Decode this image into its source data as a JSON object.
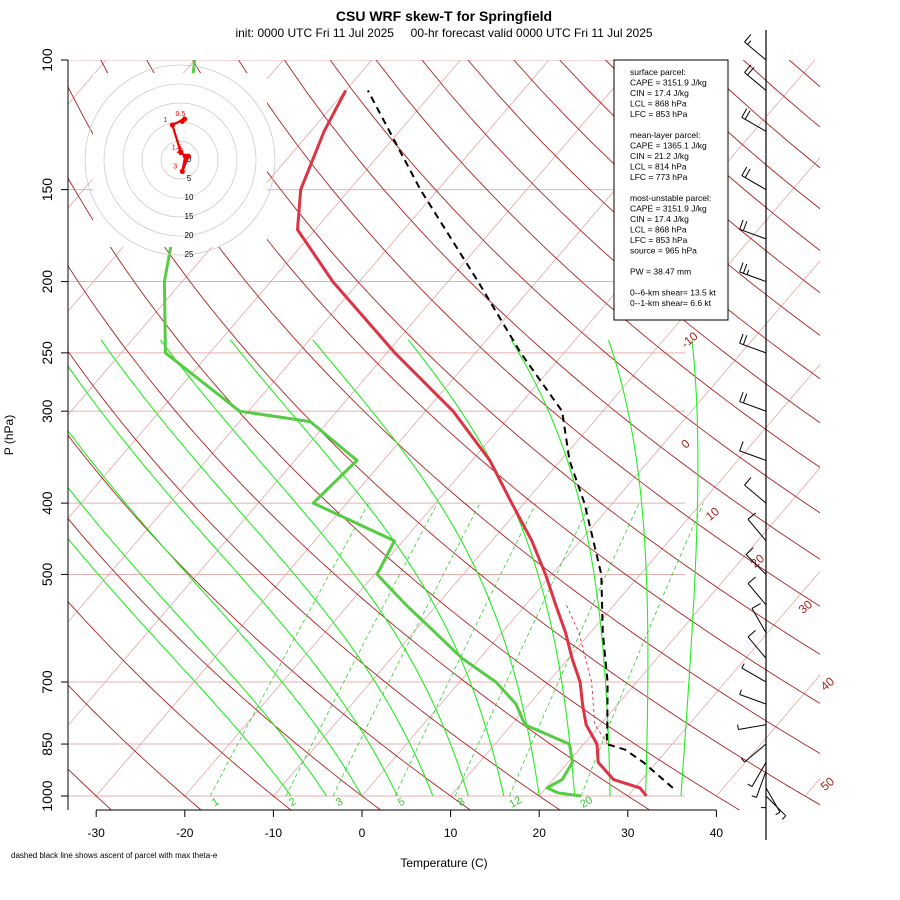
{
  "header": {
    "title": "CSU WRF skew-T for Springfield",
    "subtitle": "init: 0000 UTC Fri 11 Jul 2025     00-hr forecast valid 0000 UTC Fri 11 Jul 2025"
  },
  "footnote": "dashed black line shows ascent of parcel with max theta-e",
  "stats": {
    "lines": [
      "surface parcel:",
      "CAPE = 3151.9 J/kg",
      "CIN = 17.4 J/kg",
      "LCL = 868 hPa",
      "LFC = 853 hPa",
      "",
      "mean-layer parcel:",
      "CAPE = 1365.1 J/kg",
      "CIN = 21.2 J/kg",
      "LCL = 814 hPa",
      "LFC = 773 hPa",
      "",
      "most-unstable parcel:",
      "CAPE = 3151.9 J/kg",
      "CIN = 17.4 J/kg",
      "LCL = 868 hPa",
      "LFC = 853 hPa",
      "source = 965 hPa",
      "",
      "PW =  38.47 mm",
      "",
      "0--6-km shear= 13.5 kt",
      "0--1-km shear= 6.6 kt"
    ]
  },
  "colors": {
    "temperature": "#dd3344",
    "dewpoint": "#55cc44",
    "parcel": "#000000",
    "dry_adiabat": "#aa2222",
    "isobar": "#e8b0b0",
    "isotherm": "#e0a8a8",
    "moist_adiabat": "#22ee22",
    "mixing_ratio": "#33cc33",
    "hodograph": "#ee0000"
  },
  "chart_data": {
    "type": "skew-t",
    "title": "CSU WRF skew-T for Springfield",
    "xlabel": "Temperature (C)",
    "ylabel": "P (hPa)",
    "x_range": [
      -33,
      52
    ],
    "y_range": [
      1000,
      100
    ],
    "y_scale": "log",
    "x_ticks": [
      -30,
      -20,
      -10,
      0,
      10,
      20,
      30,
      40
    ],
    "y_ticks": [
      100,
      150,
      200,
      250,
      300,
      400,
      500,
      700,
      850,
      1000
    ],
    "isotherm_labels": [
      -10,
      0,
      10,
      20,
      30,
      40,
      50
    ],
    "mixing_ratio_labels": [
      1,
      2,
      3,
      5,
      8,
      12,
      20
    ],
    "temperature_profile": {
      "name": "temperature",
      "points": [
        [
          1000,
          32.1
        ],
        [
          975,
          30.6
        ],
        [
          950,
          26.8
        ],
        [
          900,
          23.4
        ],
        [
          850,
          21.5
        ],
        [
          800,
          18.4
        ],
        [
          750,
          16.0
        ],
        [
          700,
          13.6
        ],
        [
          650,
          10.4
        ],
        [
          600,
          7.2
        ],
        [
          550,
          3.4
        ],
        [
          500,
          -0.7
        ],
        [
          450,
          -5.5
        ],
        [
          400,
          -11.4
        ],
        [
          350,
          -18.0
        ],
        [
          300,
          -26.9
        ],
        [
          250,
          -39.1
        ],
        [
          200,
          -53.0
        ],
        [
          170,
          -62.0
        ],
        [
          150,
          -65.5
        ],
        [
          125,
          -68.5
        ],
        [
          110,
          -70.0
        ]
      ]
    },
    "dewpoint_profile": {
      "name": "dewpoint",
      "points": [
        [
          1000,
          24.7
        ],
        [
          990,
          21.8
        ],
        [
          975,
          20.1
        ],
        [
          950,
          21.0
        ],
        [
          900,
          20.5
        ],
        [
          850,
          18.4
        ],
        [
          800,
          11.5
        ],
        [
          750,
          8.5
        ],
        [
          700,
          4.1
        ],
        [
          650,
          -2.0
        ],
        [
          600,
          -7.5
        ],
        [
          550,
          -13.5
        ],
        [
          500,
          -19.7
        ],
        [
          450,
          -21.0
        ],
        [
          400,
          -33.8
        ],
        [
          350,
          -33.0
        ],
        [
          310,
          -42.0
        ],
        [
          300,
          -51.0
        ],
        [
          250,
          -65.0
        ],
        [
          200,
          -72.0
        ],
        [
          150,
          -79.0
        ],
        [
          100,
          -90.0
        ]
      ]
    },
    "parcel_profile": {
      "name": "parcel",
      "points": [
        [
          975,
          34.3
        ],
        [
          900,
          28.5
        ],
        [
          865,
          25.2
        ],
        [
          850,
          22.6
        ],
        [
          800,
          20.8
        ],
        [
          700,
          16.7
        ],
        [
          600,
          11.4
        ],
        [
          500,
          5.6
        ],
        [
          400,
          -3.2
        ],
        [
          350,
          -9.0
        ],
        [
          300,
          -14.6
        ],
        [
          250,
          -24.9
        ],
        [
          200,
          -36.6
        ],
        [
          150,
          -52.0
        ],
        [
          110,
          -67.5
        ]
      ]
    },
    "virtual_temperature_curve": {
      "points": [
        [
          850,
          22.7
        ],
        [
          800,
          19.4
        ],
        [
          700,
          14.9
        ],
        [
          600,
          8.7
        ],
        [
          550,
          4.6
        ]
      ]
    },
    "hodograph": {
      "ring_labels": [
        0,
        5,
        10,
        15,
        20,
        25
      ],
      "point_labels": [
        "0.5",
        "1",
        "1.5",
        "2",
        "3",
        "6"
      ],
      "points": [
        [
          0.6,
          10.2
        ],
        [
          1.2,
          10.8
        ],
        [
          -2.0,
          9.2
        ],
        [
          0.2,
          2.0
        ],
        [
          1.4,
          1.0
        ],
        [
          0.6,
          -3.0
        ],
        [
          2.2,
          1.0
        ]
      ]
    },
    "wind_barbs": [
      {
        "p": 1000,
        "dir": 135,
        "kt": 5
      },
      {
        "p": 975,
        "dir": 150,
        "kt": 7
      },
      {
        "p": 950,
        "dir": 180,
        "kt": 8
      },
      {
        "p": 925,
        "dir": 200,
        "kt": 9
      },
      {
        "p": 900,
        "dir": 210,
        "kt": 8
      },
      {
        "p": 850,
        "dir": 230,
        "kt": 9
      },
      {
        "p": 800,
        "dir": 260,
        "kt": 6
      },
      {
        "p": 750,
        "dir": 290,
        "kt": 7
      },
      {
        "p": 700,
        "dir": 300,
        "kt": 8
      },
      {
        "p": 650,
        "dir": 320,
        "kt": 10
      },
      {
        "p": 600,
        "dir": 330,
        "kt": 12
      },
      {
        "p": 550,
        "dir": 320,
        "kt": 12
      },
      {
        "p": 500,
        "dir": 315,
        "kt": 12
      },
      {
        "p": 450,
        "dir": 320,
        "kt": 10
      },
      {
        "p": 400,
        "dir": 310,
        "kt": 10
      },
      {
        "p": 350,
        "dir": 290,
        "kt": 12
      },
      {
        "p": 300,
        "dir": 290,
        "kt": 20
      },
      {
        "p": 250,
        "dir": 290,
        "kt": 22
      },
      {
        "p": 200,
        "dir": 290,
        "kt": 25
      },
      {
        "p": 175,
        "dir": 290,
        "kt": 24
      },
      {
        "p": 150,
        "dir": 300,
        "kt": 24
      },
      {
        "p": 125,
        "dir": 300,
        "kt": 22
      },
      {
        "p": 110,
        "dir": 310,
        "kt": 20
      },
      {
        "p": 100,
        "dir": 310,
        "kt": 18
      }
    ]
  }
}
